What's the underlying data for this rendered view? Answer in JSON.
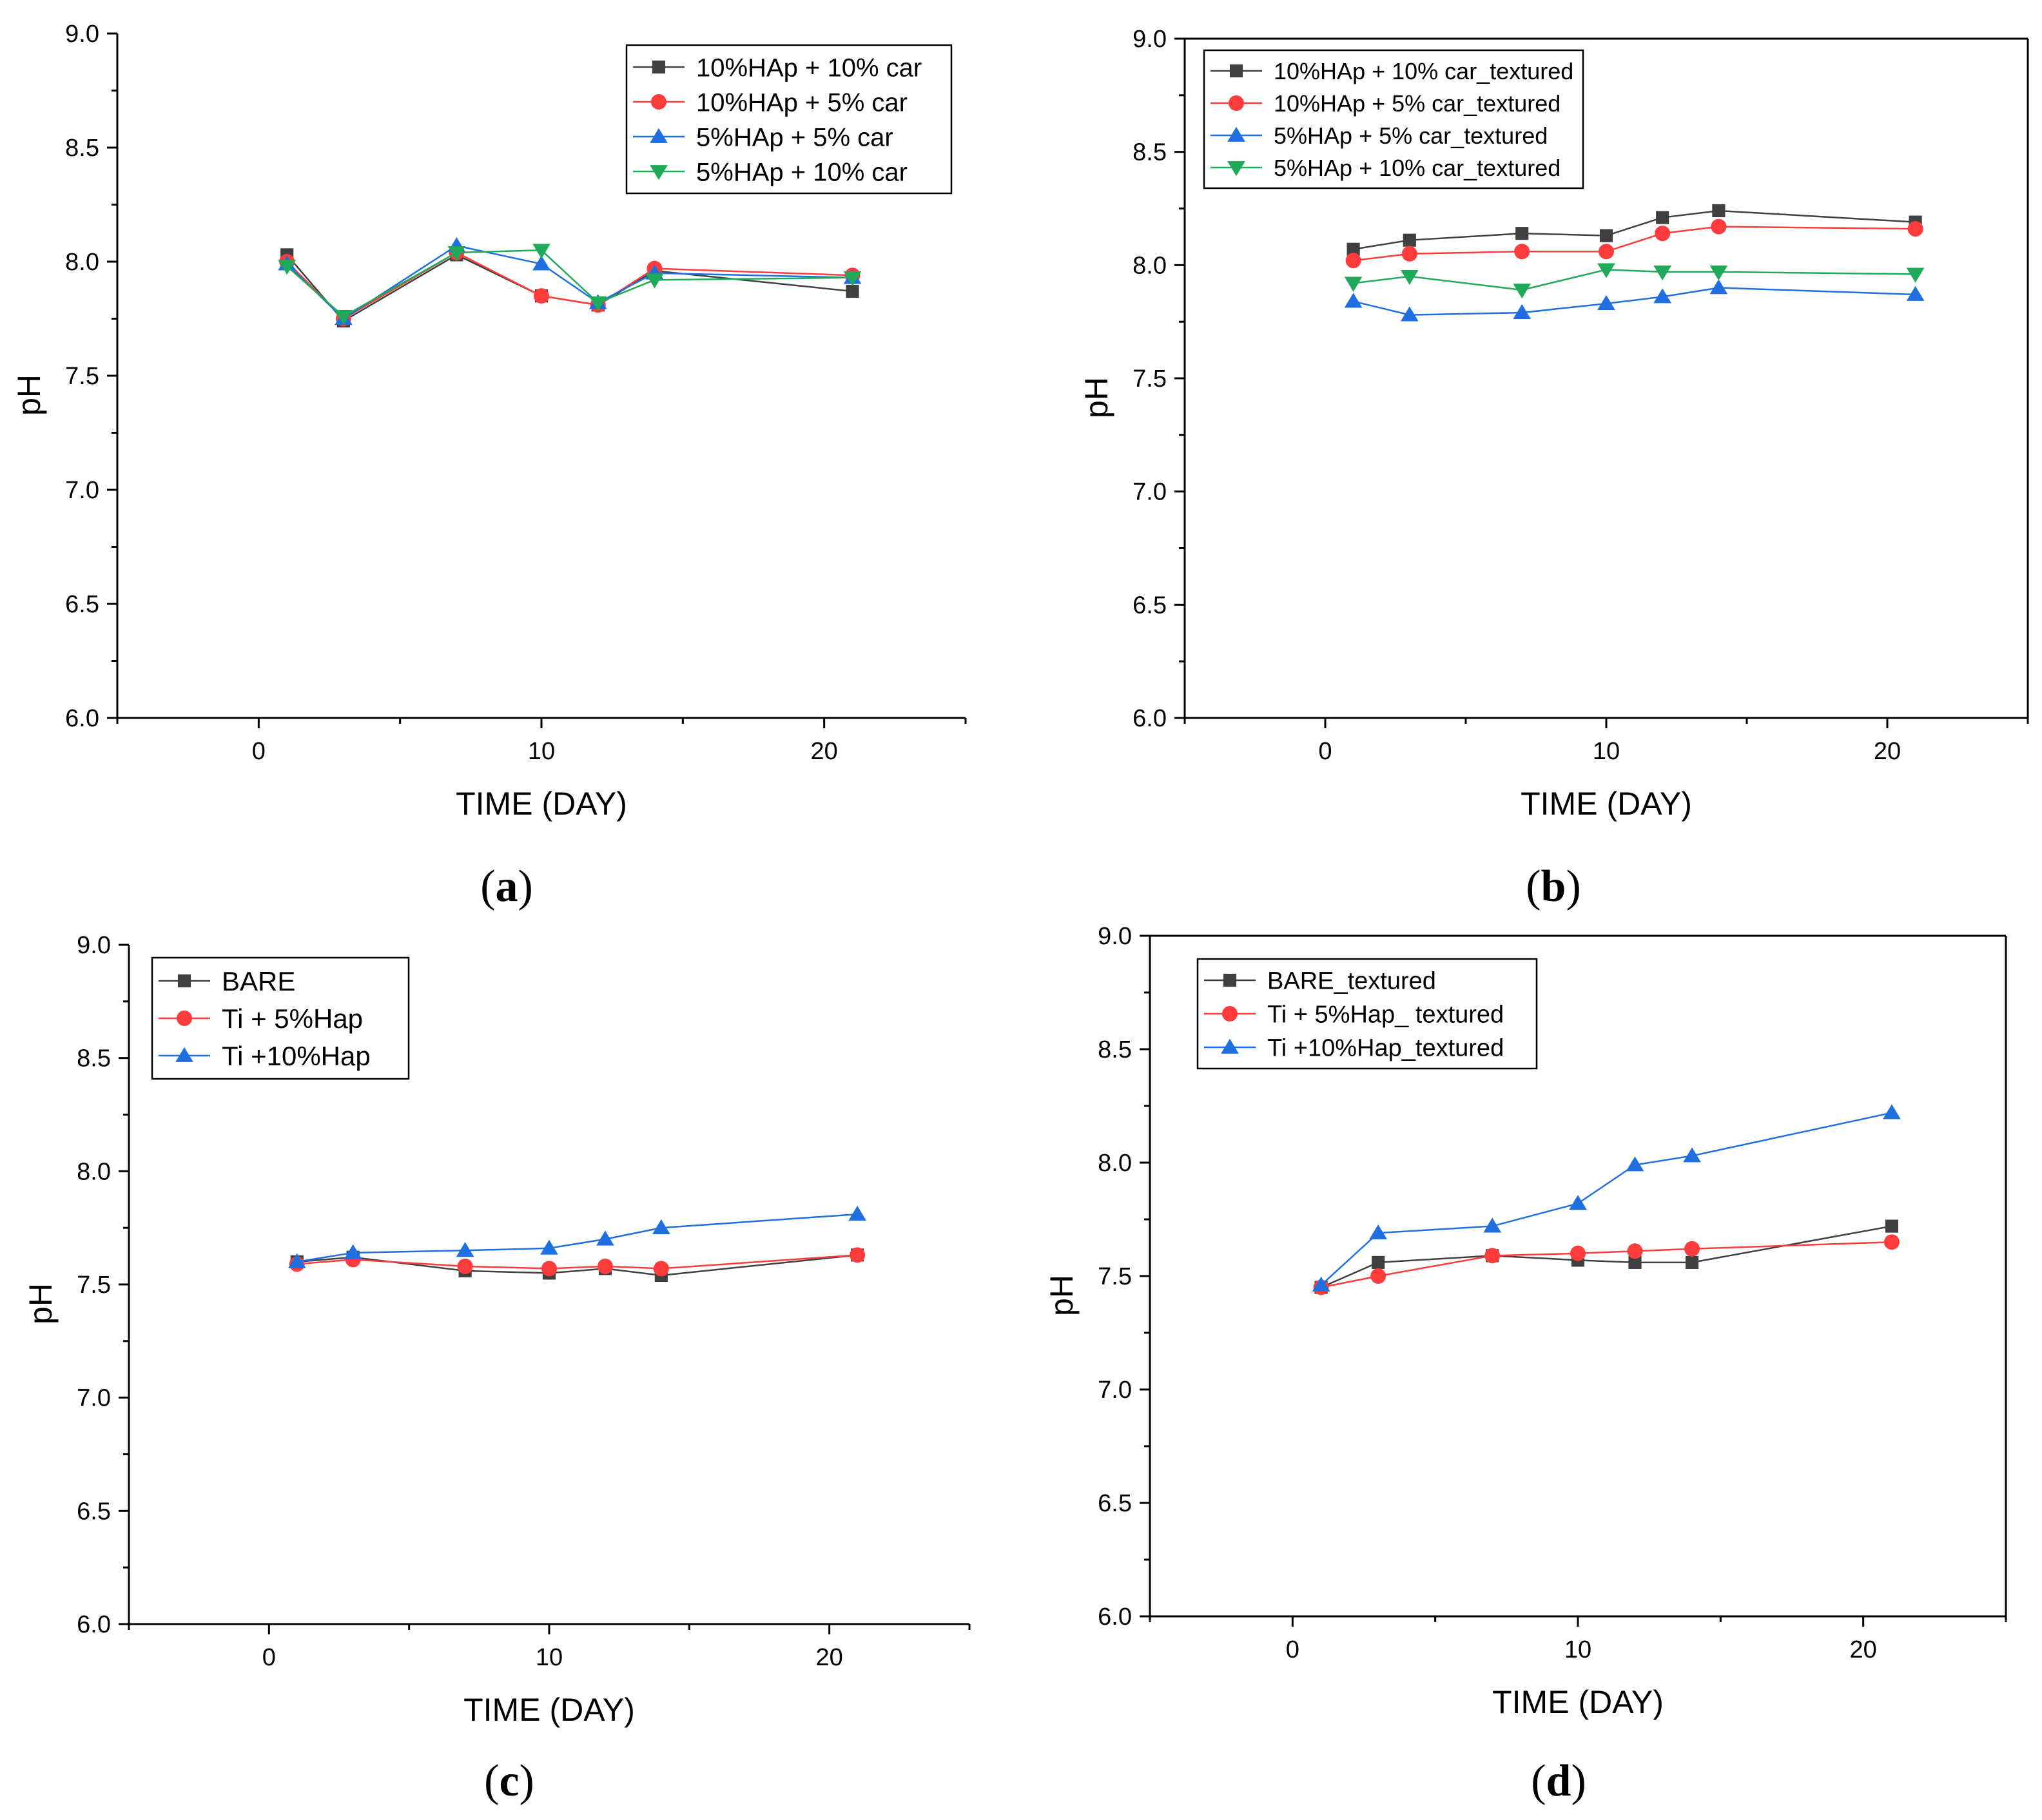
{
  "chart_data": [
    {
      "id": "a",
      "panel_label": "a",
      "type": "line",
      "xlabel": "TIME (DAY)",
      "ylabel": "pH",
      "xlim": [
        -5,
        25
      ],
      "ylim": [
        6.0,
        9.0
      ],
      "xticks": [
        0,
        10,
        20
      ],
      "yticks": [
        6.0,
        6.5,
        7.0,
        7.5,
        8.0,
        8.5,
        9.0
      ],
      "legend_position": "top-right",
      "series": [
        {
          "name": "10%HAp + 10% car",
          "marker": "square",
          "color": "#404040",
          "points": [
            [
              1,
              8.03
            ],
            [
              3,
              7.74
            ],
            [
              7,
              8.03
            ],
            [
              10,
              7.85
            ],
            [
              12,
              7.81
            ],
            [
              14,
              7.96
            ],
            [
              21,
              7.87
            ]
          ]
        },
        {
          "name": "10%HAp + 5% car",
          "marker": "circle",
          "color": "#ff3b3b",
          "points": [
            [
              1,
              8.0
            ],
            [
              3,
              7.75
            ],
            [
              7,
              8.04
            ],
            [
              10,
              7.85
            ],
            [
              12,
              7.81
            ],
            [
              14,
              7.97
            ],
            [
              21,
              7.94
            ]
          ]
        },
        {
          "name": "5%HAp + 5% car",
          "marker": "triangle-up",
          "color": "#1f6fe0",
          "points": [
            [
              1,
              7.99
            ],
            [
              3,
              7.75
            ],
            [
              7,
              8.07
            ],
            [
              10,
              7.99
            ],
            [
              12,
              7.82
            ],
            [
              14,
              7.95
            ],
            [
              21,
              7.93
            ]
          ]
        },
        {
          "name": "5%HAp + 10% car",
          "marker": "triangle-down",
          "color": "#1faa5a",
          "points": [
            [
              1,
              7.98
            ],
            [
              3,
              7.76
            ],
            [
              7,
              8.04
            ],
            [
              10,
              8.05
            ],
            [
              12,
              7.82
            ],
            [
              14,
              7.92
            ],
            [
              21,
              7.93
            ]
          ]
        }
      ]
    },
    {
      "id": "b",
      "panel_label": "b",
      "type": "line",
      "xlabel": "TIME (DAY)",
      "ylabel": "pH",
      "xlim": [
        -5,
        25
      ],
      "ylim": [
        6.0,
        9.0
      ],
      "xticks": [
        0,
        10,
        20
      ],
      "yticks": [
        6.0,
        6.5,
        7.0,
        7.5,
        8.0,
        8.5,
        9.0
      ],
      "legend_position": "top-left",
      "series": [
        {
          "name": "10%HAp + 10% car_textured",
          "marker": "square",
          "color": "#404040",
          "points": [
            [
              1,
              8.07
            ],
            [
              3,
              8.11
            ],
            [
              7,
              8.14
            ],
            [
              10,
              8.13
            ],
            [
              12,
              8.21
            ],
            [
              14,
              8.24
            ],
            [
              21,
              8.19
            ]
          ]
        },
        {
          "name": "10%HAp + 5% car_textured",
          "marker": "circle",
          "color": "#ff3b3b",
          "points": [
            [
              1,
              8.02
            ],
            [
              3,
              8.05
            ],
            [
              7,
              8.06
            ],
            [
              10,
              8.06
            ],
            [
              12,
              8.14
            ],
            [
              14,
              8.17
            ],
            [
              21,
              8.16
            ]
          ]
        },
        {
          "name": "5%HAp + 5% car_textured",
          "marker": "triangle-up",
          "color": "#1f6fe0",
          "points": [
            [
              1,
              7.84
            ],
            [
              3,
              7.78
            ],
            [
              7,
              7.79
            ],
            [
              10,
              7.83
            ],
            [
              12,
              7.86
            ],
            [
              14,
              7.9
            ],
            [
              21,
              7.87
            ]
          ]
        },
        {
          "name": "5%HAp + 10% car_textured",
          "marker": "triangle-down",
          "color": "#1faa5a",
          "points": [
            [
              1,
              7.92
            ],
            [
              3,
              7.95
            ],
            [
              7,
              7.89
            ],
            [
              10,
              7.98
            ],
            [
              12,
              7.97
            ],
            [
              14,
              7.97
            ],
            [
              21,
              7.96
            ]
          ]
        }
      ]
    },
    {
      "id": "c",
      "panel_label": "c",
      "type": "line",
      "xlabel": "TIME (DAY)",
      "ylabel": "pH",
      "xlim": [
        -5,
        25
      ],
      "ylim": [
        6.0,
        9.0
      ],
      "xticks": [
        0,
        10,
        20
      ],
      "yticks": [
        6.0,
        6.5,
        7.0,
        7.5,
        8.0,
        8.5,
        9.0
      ],
      "legend_position": "top-left",
      "series": [
        {
          "name": "BARE",
          "marker": "square",
          "color": "#404040",
          "points": [
            [
              1,
              7.6
            ],
            [
              3,
              7.62
            ],
            [
              7,
              7.56
            ],
            [
              10,
              7.55
            ],
            [
              12,
              7.57
            ],
            [
              14,
              7.54
            ],
            [
              21,
              7.63
            ]
          ]
        },
        {
          "name": "Ti + 5%Hap",
          "marker": "circle",
          "color": "#ff3b3b",
          "points": [
            [
              1,
              7.59
            ],
            [
              3,
              7.61
            ],
            [
              7,
              7.58
            ],
            [
              10,
              7.57
            ],
            [
              12,
              7.58
            ],
            [
              14,
              7.57
            ],
            [
              21,
              7.63
            ]
          ]
        },
        {
          "name": "Ti +10%Hap",
          "marker": "triangle-up",
          "color": "#1f6fe0",
          "points": [
            [
              1,
              7.6
            ],
            [
              3,
              7.64
            ],
            [
              7,
              7.65
            ],
            [
              10,
              7.66
            ],
            [
              12,
              7.7
            ],
            [
              14,
              7.75
            ],
            [
              21,
              7.81
            ]
          ]
        }
      ]
    },
    {
      "id": "d",
      "panel_label": "d",
      "type": "line",
      "xlabel": "TIME (DAY)",
      "ylabel": "pH",
      "xlim": [
        -5,
        25
      ],
      "ylim": [
        6.0,
        9.0
      ],
      "xticks": [
        0,
        10,
        20
      ],
      "yticks": [
        6.0,
        6.5,
        7.0,
        7.5,
        8.0,
        8.5,
        9.0
      ],
      "legend_position": "top-left",
      "series": [
        {
          "name": "BARE_textured",
          "marker": "square",
          "color": "#404040",
          "points": [
            [
              1,
              7.45
            ],
            [
              3,
              7.56
            ],
            [
              7,
              7.59
            ],
            [
              10,
              7.57
            ],
            [
              12,
              7.56
            ],
            [
              14,
              7.56
            ],
            [
              21,
              7.72
            ]
          ]
        },
        {
          "name": "Ti + 5%Hap_ textured",
          "marker": "circle",
          "color": "#ff3b3b",
          "points": [
            [
              1,
              7.45
            ],
            [
              3,
              7.5
            ],
            [
              7,
              7.59
            ],
            [
              10,
              7.6
            ],
            [
              12,
              7.61
            ],
            [
              14,
              7.62
            ],
            [
              21,
              7.65
            ]
          ]
        },
        {
          "name": "Ti +10%Hap_textured",
          "marker": "triangle-up",
          "color": "#1f6fe0",
          "points": [
            [
              1,
              7.46
            ],
            [
              3,
              7.69
            ],
            [
              7,
              7.72
            ],
            [
              10,
              7.82
            ],
            [
              12,
              7.99
            ],
            [
              14,
              8.03
            ],
            [
              21,
              8.22
            ]
          ]
        }
      ]
    }
  ]
}
